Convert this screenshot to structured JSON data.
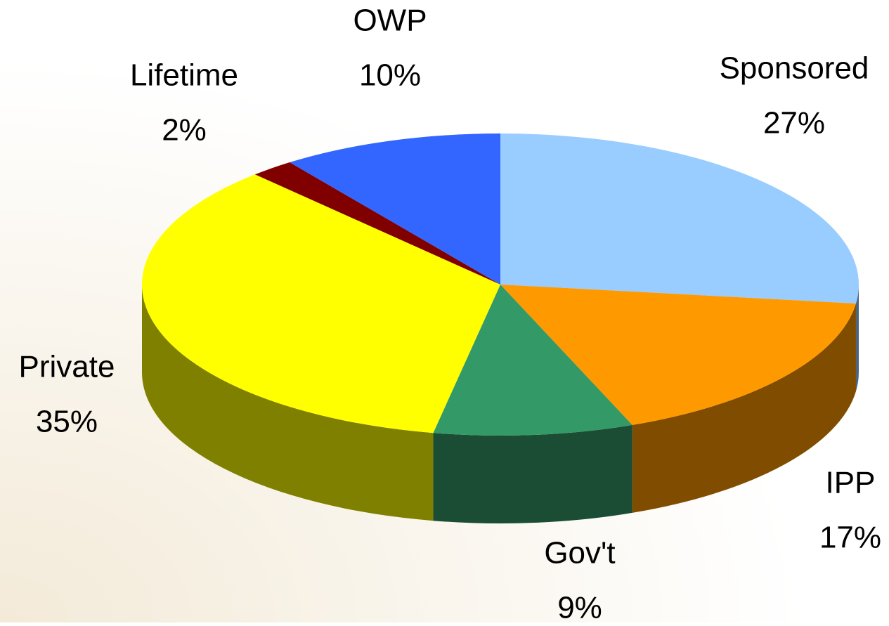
{
  "chart_data": {
    "type": "pie",
    "categories": [
      "Sponsored",
      "IPP",
      "Gov't",
      "Private",
      "Lifetime",
      "OWP"
    ],
    "values": [
      27,
      17,
      9,
      35,
      2,
      10
    ],
    "value_labels": [
      "27%",
      "17%",
      "9%",
      "35%",
      "2%",
      "10%"
    ],
    "colors": [
      "#99ccff",
      "#ff9900",
      "#339966",
      "#ffff00",
      "#800000",
      "#3366ff"
    ]
  }
}
